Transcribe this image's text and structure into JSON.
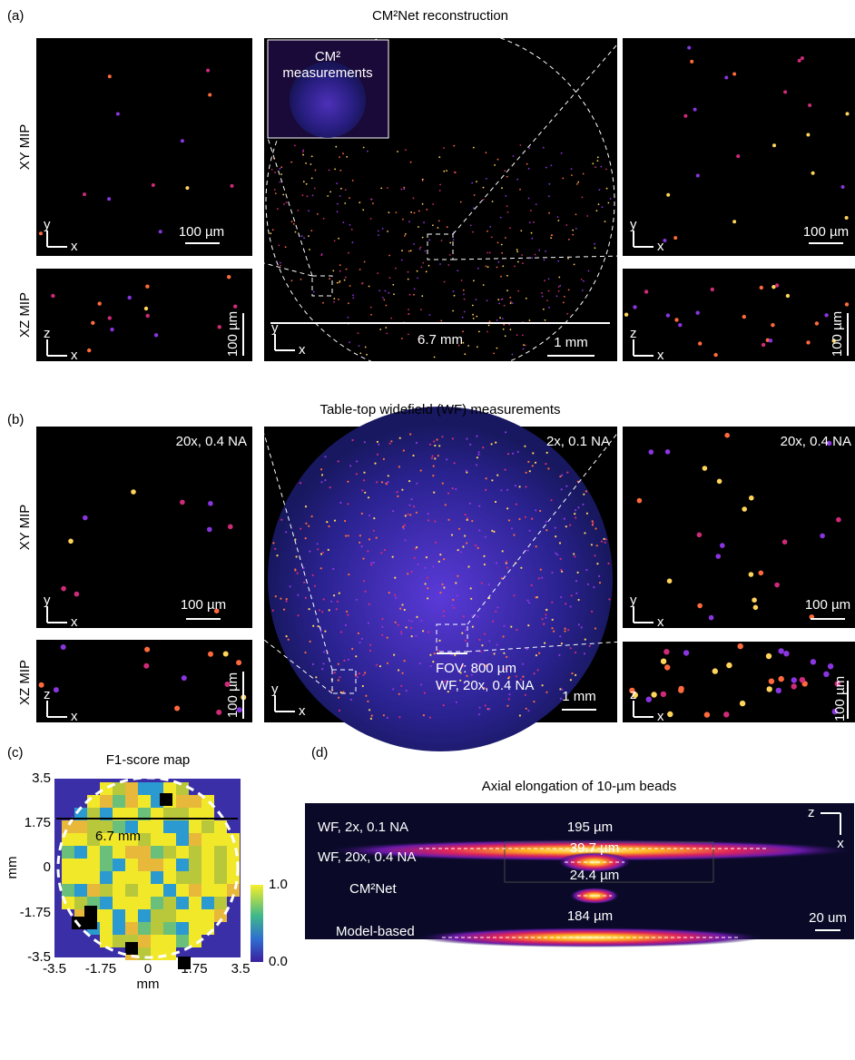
{
  "axis_labels": {
    "x": "x",
    "y": "y",
    "z": "z"
  },
  "panel_a": {
    "label": "(a)",
    "title": "CM²Net reconstruction",
    "row_labels": [
      "XY MIP",
      "XZ MIP"
    ],
    "inset_title": [
      "CM²",
      "measurements"
    ],
    "scale_bar_small": "100 µm",
    "scale_bar_large": "1 mm",
    "fov": "6.7 mm"
  },
  "panel_b": {
    "label": "(b)",
    "title": "Table-top widefield (WF) measurements",
    "row_labels": [
      "XY MIP",
      "XZ MIP"
    ],
    "left_magnification": "20x, 0.4 NA",
    "center_magnification": "2x, 0.1 NA",
    "right_magnification": "20x, 0.4 NA",
    "fov": "FOV: 800 µm",
    "fov_note": "WF, 20x, 0.4 NA",
    "scale_bar_small": "100 µm",
    "scale_bar_large": "1 mm"
  },
  "panel_c": {
    "label": "(c)",
    "title": "F1-score map",
    "xticks": [
      "-3.5",
      "-1.75",
      "0",
      "1.75",
      "3.5"
    ],
    "yticks": [
      "3.5",
      "1.75",
      "0",
      "-1.75",
      "-3.5"
    ],
    "xlabel": "mm",
    "ylabel": "mm",
    "diameter": "6.7 mm",
    "colorbar_ticks": [
      "1.0",
      "0.0"
    ]
  },
  "panel_d": {
    "label": "(d)",
    "title": "Axial elongation of 10-µm beads",
    "rows": [
      {
        "name": "WF, 2x, 0.1 NA",
        "length": "195 µm"
      },
      {
        "name": "WF, 20x, 0.4 NA",
        "length": "39.7 µm"
      },
      {
        "name": "CM²Net",
        "length": "24.4 µm"
      },
      {
        "name": "Model-based",
        "length": "184 µm"
      }
    ],
    "scale_bar": "20 um"
  }
}
